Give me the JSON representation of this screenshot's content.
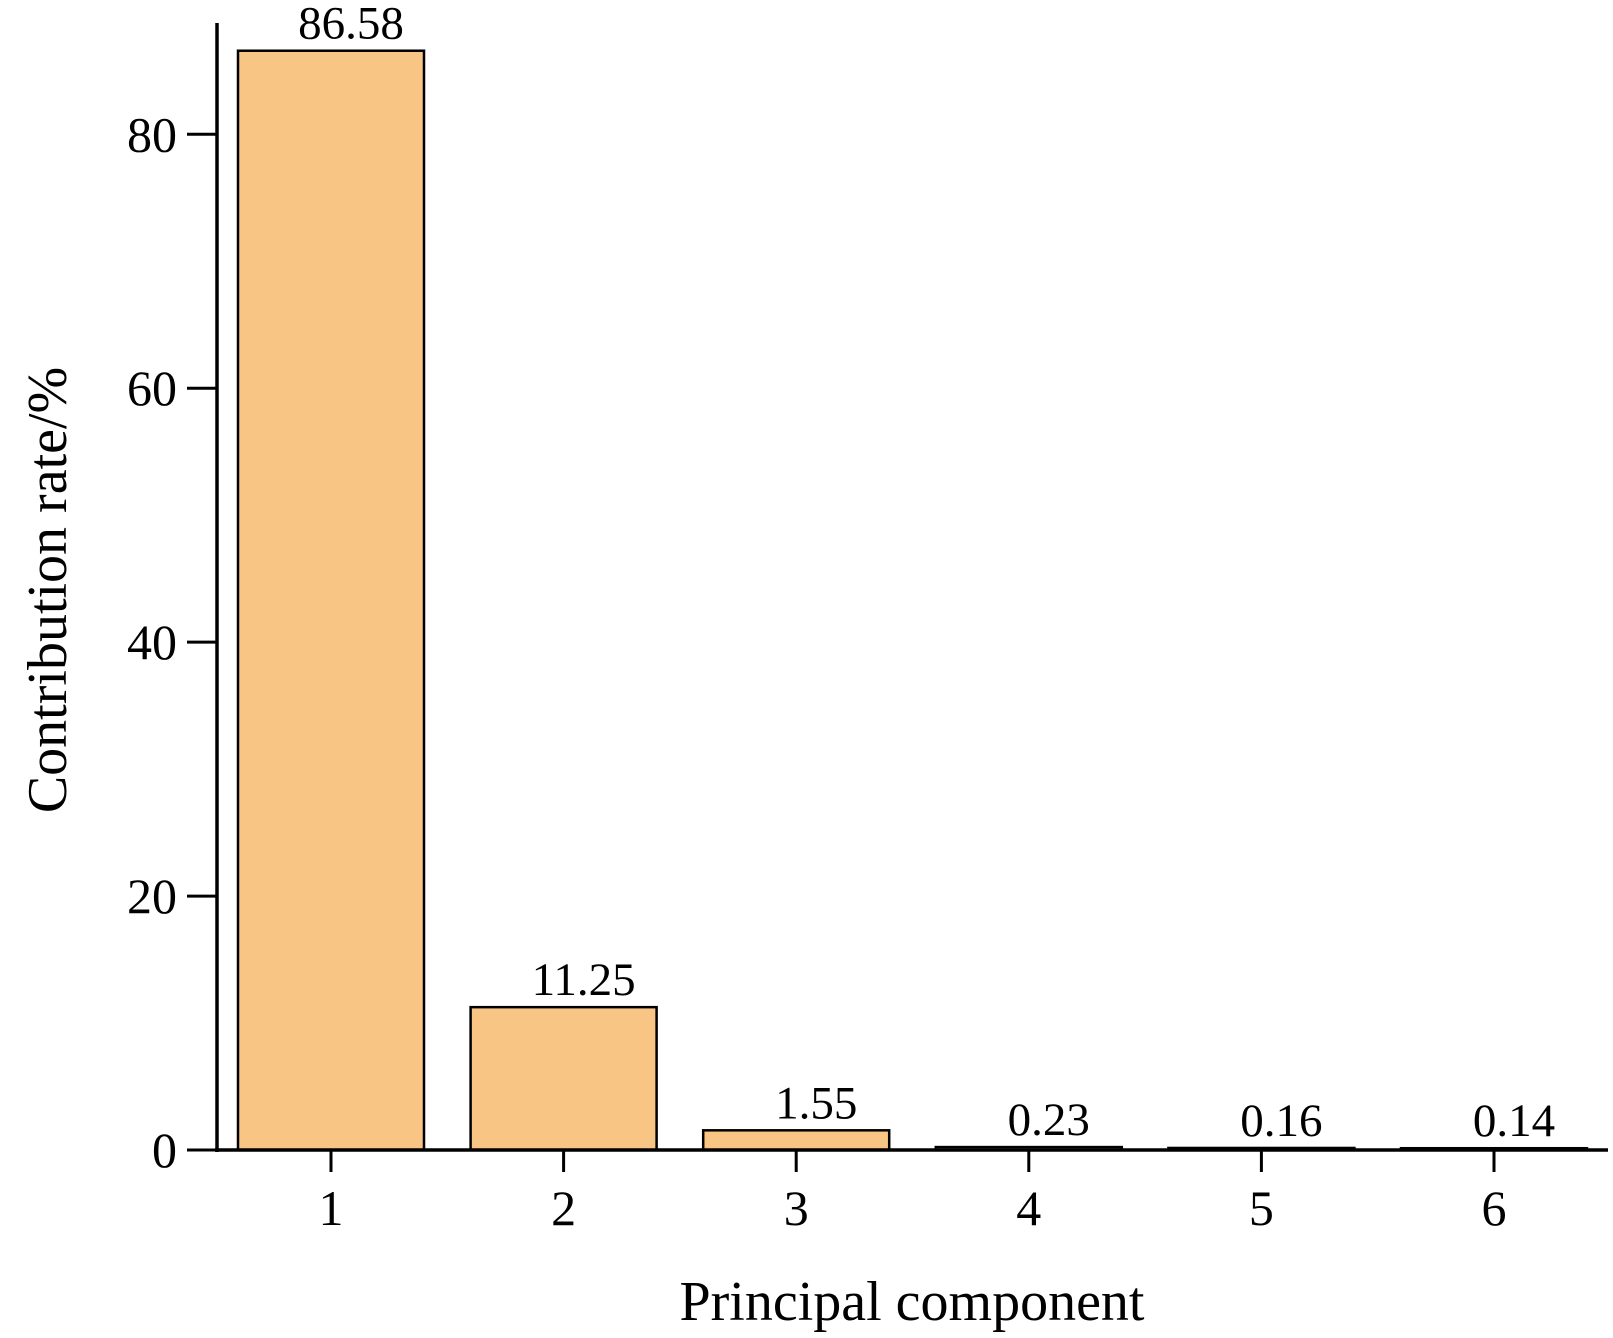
{
  "chart_data": {
    "type": "bar",
    "categories": [
      "1",
      "2",
      "3",
      "4",
      "5",
      "6"
    ],
    "values": [
      86.58,
      11.25,
      1.55,
      0.23,
      0.16,
      0.14
    ],
    "data_labels": [
      "86.58",
      "11.25",
      "1.55",
      "0.23",
      "0.16",
      "0.14"
    ],
    "xlabel": "Principal component",
    "ylabel": "Contribution rate/%",
    "ylim": [
      0,
      89
    ],
    "yticks": [
      0,
      20,
      40,
      60,
      80
    ],
    "grid": false,
    "legend": "none",
    "bar_color": "#F9C585"
  }
}
